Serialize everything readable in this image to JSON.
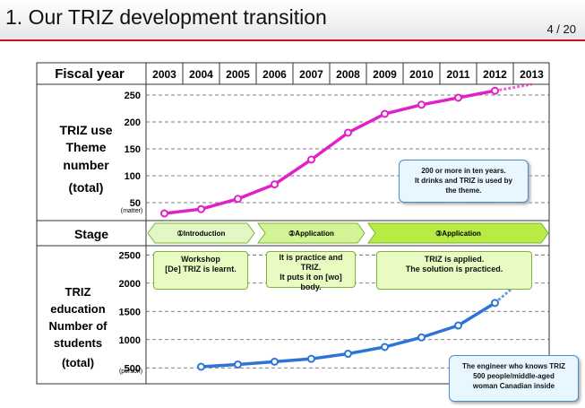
{
  "slide": {
    "title": "1. Our TRIZ development transition",
    "page": "4 / 20"
  },
  "table": {
    "fiscal_year_label": "Fiscal year",
    "years": [
      "2003",
      "2004",
      "2005",
      "2006",
      "2007",
      "2008",
      "2009",
      "2010",
      "2011",
      "2012",
      "2013"
    ],
    "row1_label": [
      "TRIZ use",
      "Theme",
      "number",
      "(total)"
    ],
    "row1_unit": "(matter)",
    "stage_label": "Stage",
    "row3_label": [
      "TRIZ",
      "education",
      "Number of",
      "students",
      "(total)"
    ],
    "row3_unit": "(person)"
  },
  "stages": [
    {
      "label": "①Introduction",
      "note": [
        "Workshop",
        "[De] TRIZ is learnt."
      ]
    },
    {
      "label": "②Application",
      "note": [
        "It is practice and",
        "TRIZ.",
        "It puts it on [wo]",
        "body."
      ]
    },
    {
      "label": "③Application",
      "note": [
        "TRIZ is applied.",
        "The solution is practiced."
      ]
    }
  ],
  "callouts": {
    "top": [
      "200 or more in ten years.",
      "It drinks and TRIZ is used by",
      "the theme."
    ],
    "bottom": [
      "The engineer who knows TRIZ",
      "500 people/middle-aged",
      "woman Canadian inside"
    ]
  },
  "colors": {
    "theme_line": "#e020c8",
    "students_line": "#2e74d6",
    "stage1": "#e2f7c4",
    "stage2": "#d2f494",
    "stage3": "#b8ec44",
    "header_rule": "#c8141e"
  },
  "chart_data": [
    {
      "type": "line",
      "title": "",
      "ylabel": "TRIZ use Theme number (total)",
      "yunit": "(matter)",
      "ylim": [
        20,
        260
      ],
      "yticks": [
        50,
        100,
        150,
        200,
        250
      ],
      "x": [
        "2003",
        "2004",
        "2005",
        "2006",
        "2007",
        "2008",
        "2009",
        "2010",
        "2011",
        "2012"
      ],
      "values": [
        30,
        38,
        57,
        84,
        130,
        180,
        215,
        232,
        245,
        258
      ],
      "projection": {
        "x": [
          "2012",
          "2013"
        ],
        "values": [
          258,
          270
        ]
      }
    },
    {
      "type": "line",
      "title": "",
      "ylabel": "TRIZ education Number of students (total)",
      "yunit": "(person)",
      "ylim": [
        250,
        2600
      ],
      "yticks": [
        500,
        1000,
        1500,
        2000,
        2500
      ],
      "x": [
        "2004",
        "2005",
        "2006",
        "2007",
        "2008",
        "2009",
        "2010",
        "2011",
        "2012"
      ],
      "values": [
        520,
        560,
        610,
        660,
        750,
        870,
        1040,
        1250,
        1650
      ],
      "projection": {
        "x": [
          "2012",
          "2013"
        ],
        "values": [
          1650,
          2200
        ]
      }
    }
  ]
}
